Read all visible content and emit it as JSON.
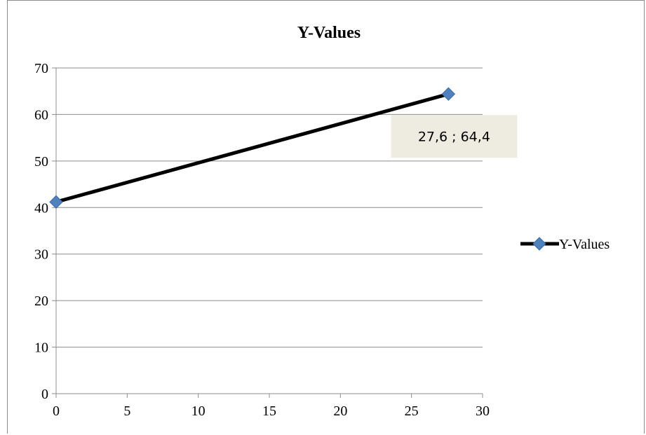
{
  "chart_data": {
    "type": "line",
    "title": "Y-Values",
    "xlabel": "",
    "ylabel": "",
    "xlim": [
      0,
      30
    ],
    "ylim": [
      0,
      70
    ],
    "x_ticks": [
      0,
      5,
      10,
      15,
      20,
      25,
      30
    ],
    "y_ticks": [
      0,
      10,
      20,
      30,
      40,
      50,
      60,
      70
    ],
    "grid": "horizontal",
    "legend": "right",
    "series": [
      {
        "name": "Y-Values",
        "x": [
          0,
          27.6
        ],
        "y": [
          41.2,
          64.4
        ],
        "line_color": "#000000",
        "marker": "diamond",
        "marker_color": "#4f81bd"
      }
    ],
    "annotation": {
      "text": "27,6 ; 64,4",
      "point_x": 27.6,
      "point_y": 64.4,
      "background": "#eeece1"
    }
  }
}
